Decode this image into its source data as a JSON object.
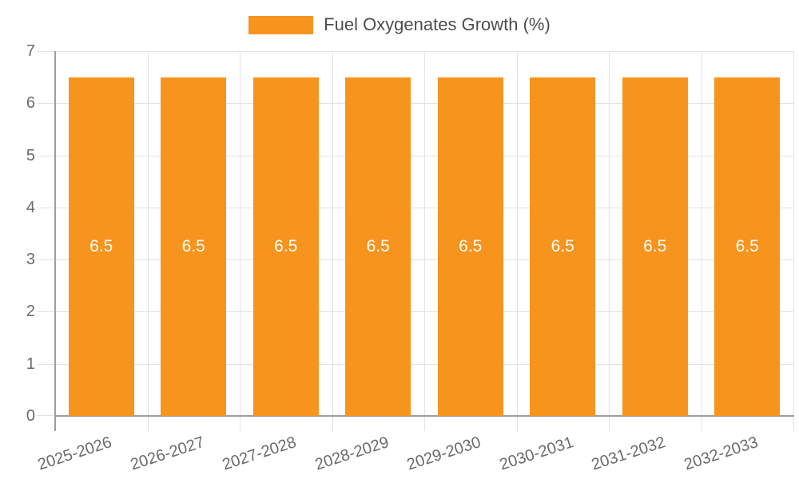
{
  "chart_data": {
    "type": "bar",
    "title": "",
    "legend": {
      "label": "Fuel Oxygenates Growth (%)",
      "position": "top-center"
    },
    "categories": [
      "2025-2026",
      "2026-2027",
      "2027-2028",
      "2028-2029",
      "2029-2030",
      "2030-2031",
      "2031-2032",
      "2032-2033"
    ],
    "series": [
      {
        "name": "Fuel Oxygenates Growth (%)",
        "values": [
          6.5,
          6.5,
          6.5,
          6.5,
          6.5,
          6.5,
          6.5,
          6.5
        ]
      }
    ],
    "bar_labels": [
      "6.5",
      "6.5",
      "6.5",
      "6.5",
      "6.5",
      "6.5",
      "6.5",
      "6.5"
    ],
    "xlabel": "",
    "ylabel": "",
    "ylim": [
      0,
      7
    ],
    "y_ticks": [
      0,
      1,
      2,
      3,
      4,
      5,
      6,
      7
    ],
    "grid": {
      "horizontal": true,
      "vertical": true
    },
    "x_label_rotation_deg": -18,
    "colors": {
      "bar": "#F7941E",
      "bar_label": "#FFFFFF",
      "axis_label": "#6b6b6b",
      "axis_line": "#9E9E9E",
      "gridline": "#E3E3E3",
      "legend_text": "#4d4d4d",
      "background": "#FFFFFF"
    }
  }
}
